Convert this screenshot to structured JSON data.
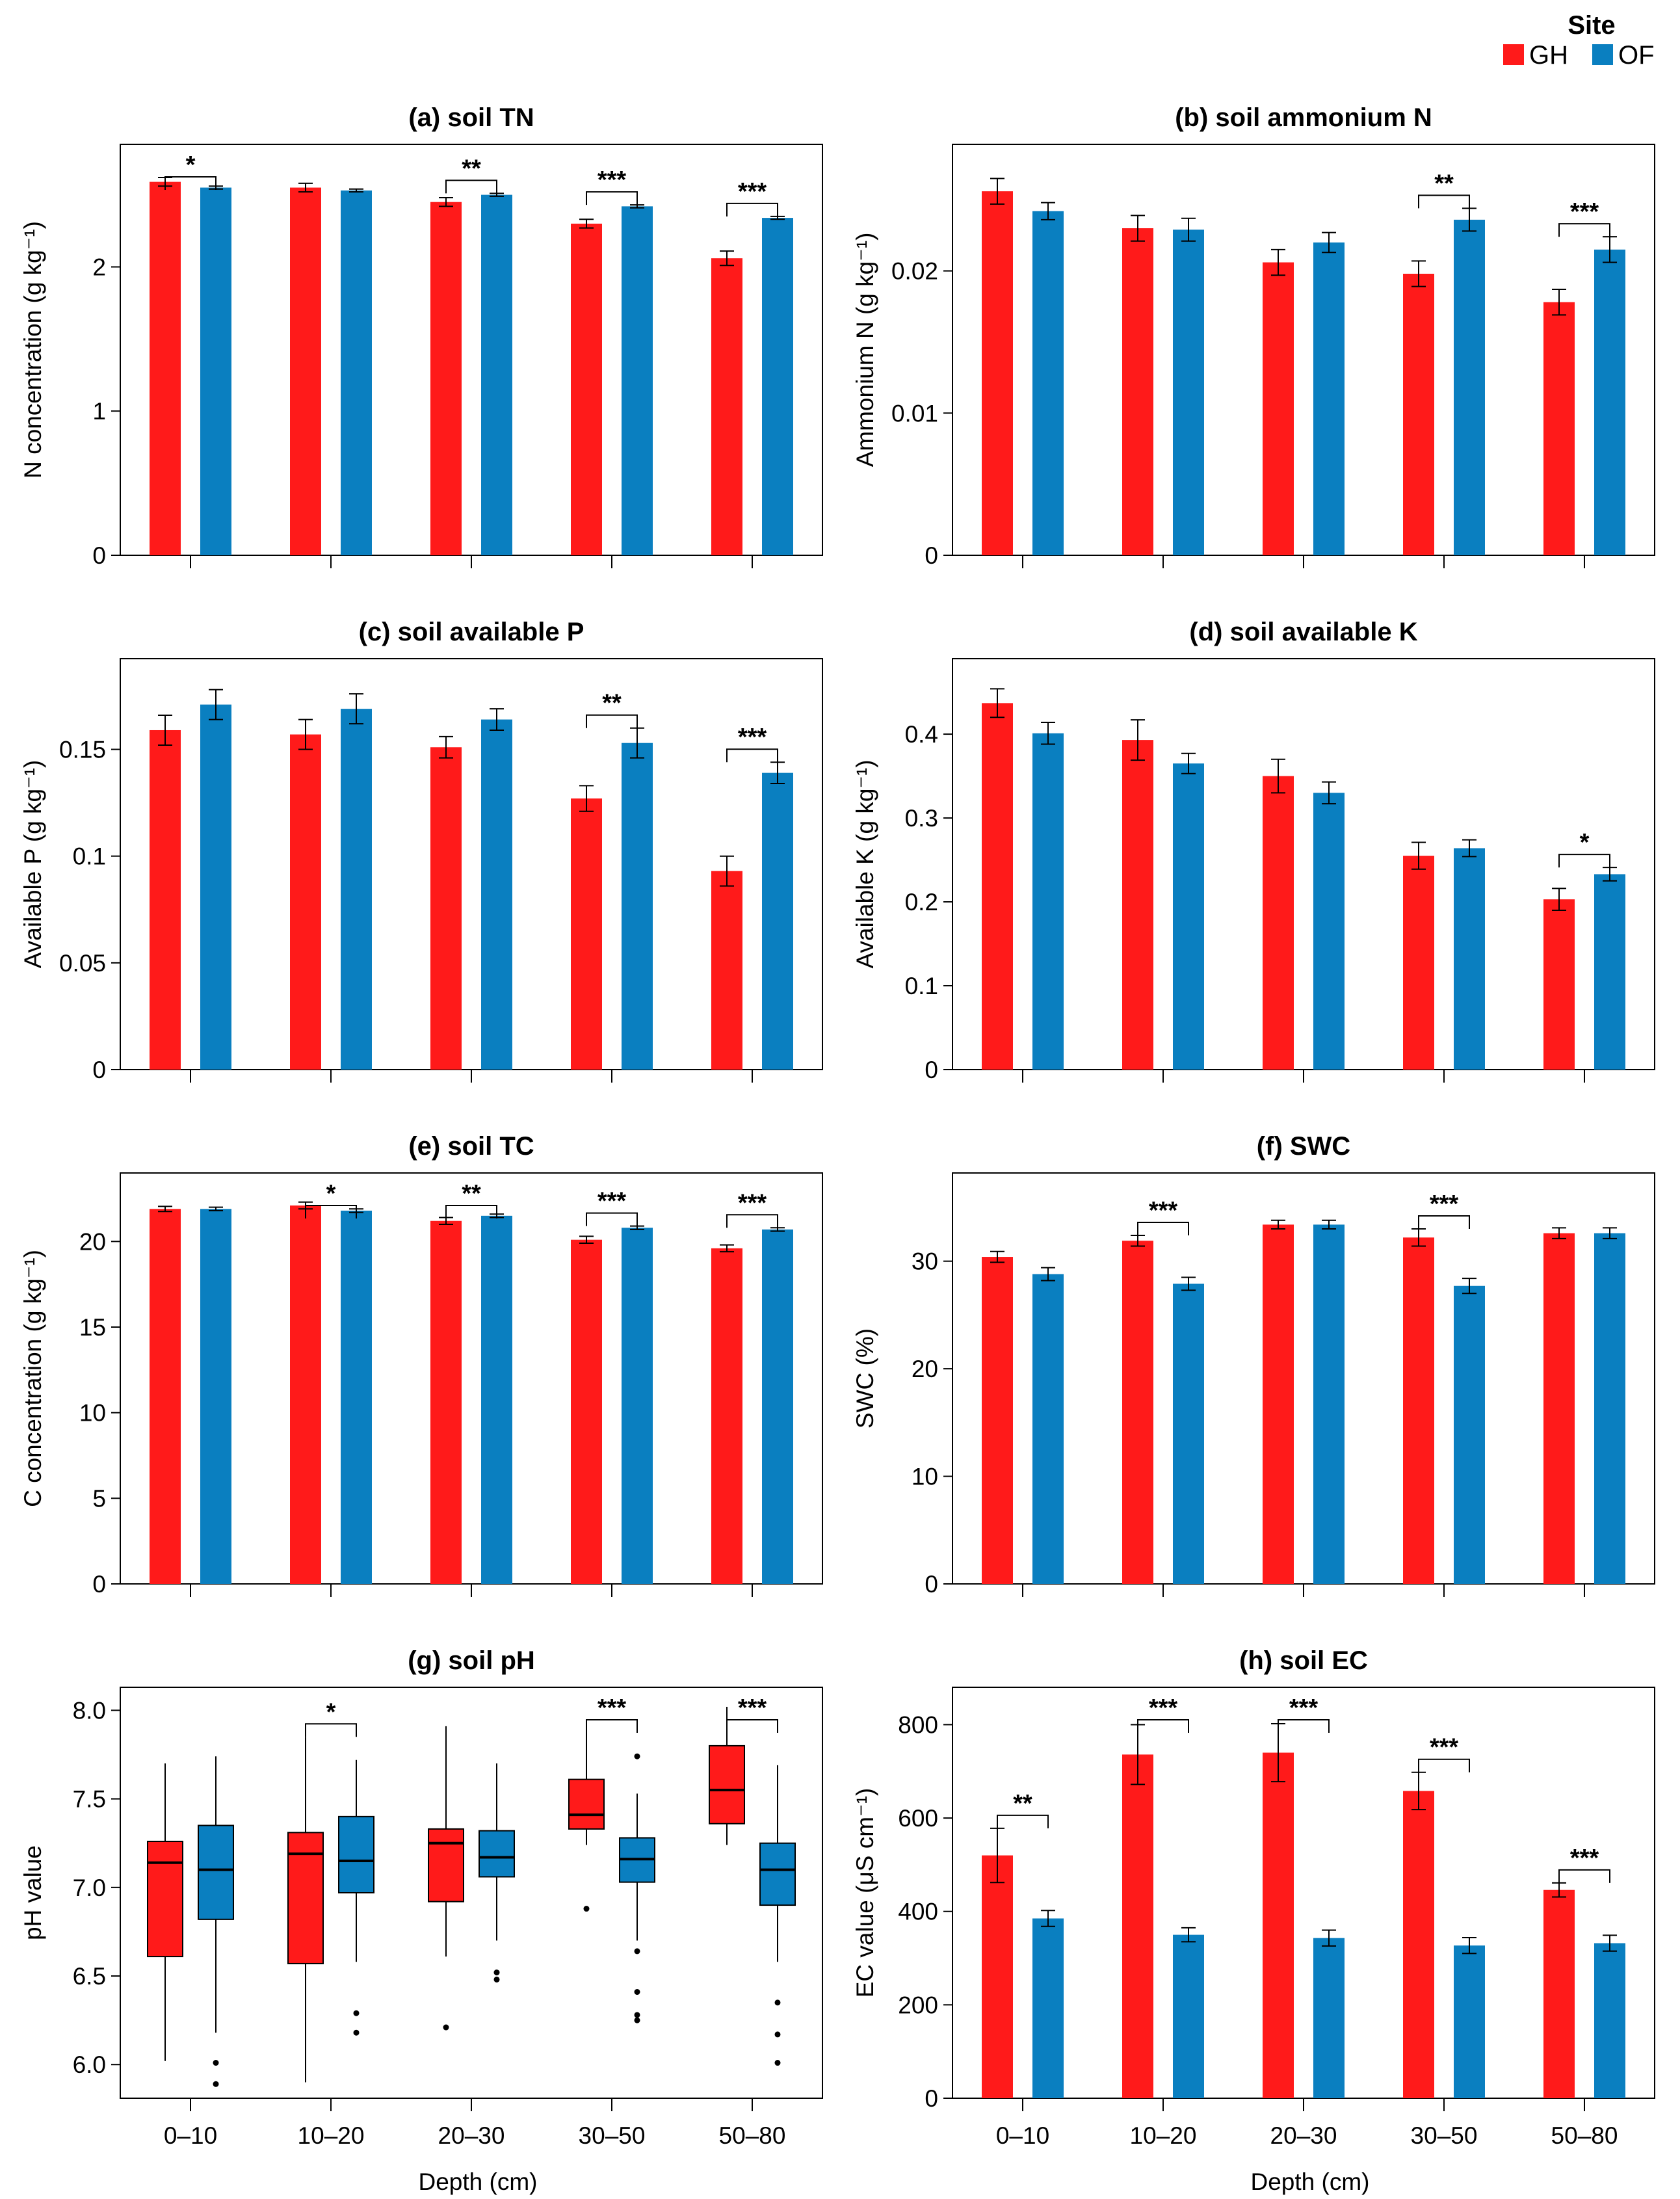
{
  "legend": {
    "title": "Site",
    "items": [
      {
        "label": "GH",
        "color": "#ff1a1a"
      },
      {
        "label": "OF",
        "color": "#0a7fc0"
      }
    ]
  },
  "xlabel": "Depth (cm)",
  "chart_data": [
    {
      "id": "a",
      "type": "bar",
      "title": "(a) soil TN",
      "ylabel": "N concentration (g kg⁻¹)",
      "ylim": [
        0,
        2.85
      ],
      "yticks": [
        0,
        1,
        2
      ],
      "ytick_labels": [
        "0",
        "1",
        "2"
      ],
      "categories": [
        "0–10",
        "10–20",
        "20–30",
        "30–50",
        "50–80"
      ],
      "series": [
        {
          "name": "GH",
          "values": [
            2.59,
            2.55,
            2.45,
            2.3,
            2.06
          ],
          "errors": [
            0.03,
            0.03,
            0.03,
            0.03,
            0.05
          ]
        },
        {
          "name": "OF",
          "values": [
            2.55,
            2.53,
            2.5,
            2.42,
            2.34
          ],
          "errors": [
            0.01,
            0.01,
            0.01,
            0.01,
            0.01
          ]
        }
      ],
      "significance": [
        "*",
        "",
        "**",
        "***",
        "***"
      ]
    },
    {
      "id": "b",
      "type": "bar",
      "title": "(b) soil ammonium N",
      "ylabel": "Ammonium N (g kg⁻¹)",
      "ylim": [
        0,
        0.0289
      ],
      "yticks": [
        0,
        0.01,
        0.02
      ],
      "ytick_labels": [
        "0",
        "0.01",
        "0.02"
      ],
      "categories": [
        "0–10",
        "10–20",
        "20–30",
        "30–50",
        "50–80"
      ],
      "series": [
        {
          "name": "GH",
          "values": [
            0.0256,
            0.023,
            0.0206,
            0.0198,
            0.0178
          ],
          "errors": [
            0.0009,
            0.0009,
            0.0009,
            0.0009,
            0.0009
          ]
        },
        {
          "name": "OF",
          "values": [
            0.0242,
            0.0229,
            0.022,
            0.0236,
            0.0215
          ],
          "errors": [
            0.0006,
            0.0008,
            0.0007,
            0.0008,
            0.0009
          ]
        }
      ],
      "significance": [
        "",
        "",
        "",
        "**",
        "***"
      ]
    },
    {
      "id": "c",
      "type": "bar",
      "title": "(c) soil available P",
      "ylabel": "Available P (g kg⁻¹)",
      "ylim": [
        0,
        0.1925
      ],
      "yticks": [
        0,
        0.05,
        0.1,
        0.15
      ],
      "ytick_labels": [
        "0",
        "0.05",
        "0.1",
        "0.15"
      ],
      "categories": [
        "0–10",
        "10–20",
        "20–30",
        "30–50",
        "50–80"
      ],
      "series": [
        {
          "name": "GH",
          "values": [
            0.159,
            0.157,
            0.151,
            0.127,
            0.093
          ],
          "errors": [
            0.007,
            0.007,
            0.005,
            0.006,
            0.007
          ]
        },
        {
          "name": "OF",
          "values": [
            0.171,
            0.169,
            0.164,
            0.153,
            0.139
          ],
          "errors": [
            0.007,
            0.007,
            0.005,
            0.007,
            0.005
          ]
        }
      ],
      "significance": [
        "",
        "",
        "",
        "**",
        "***"
      ]
    },
    {
      "id": "d",
      "type": "bar",
      "title": "(d) soil available K",
      "ylabel": "Available K (g kg⁻¹)",
      "ylim": [
        0,
        0.49
      ],
      "yticks": [
        0,
        0.1,
        0.2,
        0.3,
        0.4
      ],
      "ytick_labels": [
        "0",
        "0.1",
        "0.2",
        "0.3",
        "0.4"
      ],
      "categories": [
        "0–10",
        "10–20",
        "20–30",
        "30–50",
        "50–80"
      ],
      "series": [
        {
          "name": "GH",
          "values": [
            0.437,
            0.393,
            0.35,
            0.255,
            0.203
          ],
          "errors": [
            0.017,
            0.024,
            0.02,
            0.016,
            0.013
          ]
        },
        {
          "name": "OF",
          "values": [
            0.401,
            0.365,
            0.33,
            0.264,
            0.233
          ],
          "errors": [
            0.013,
            0.012,
            0.013,
            0.01,
            0.008
          ]
        }
      ],
      "significance": [
        "",
        "",
        "",
        "",
        "*"
      ]
    },
    {
      "id": "e",
      "type": "bar",
      "title": "(e) soil TC",
      "ylabel": "C concentration (g kg⁻¹)",
      "ylim": [
        0,
        24.0
      ],
      "yticks": [
        0,
        5,
        10,
        15,
        20
      ],
      "ytick_labels": [
        "0",
        "5",
        "10",
        "15",
        "20"
      ],
      "categories": [
        "0–10",
        "10–20",
        "20–30",
        "30–50",
        "50–80"
      ],
      "series": [
        {
          "name": "GH",
          "values": [
            21.9,
            22.1,
            21.2,
            20.1,
            19.6
          ],
          "errors": [
            0.15,
            0.2,
            0.2,
            0.2,
            0.2
          ]
        },
        {
          "name": "OF",
          "values": [
            21.9,
            21.8,
            21.5,
            20.8,
            20.7
          ],
          "errors": [
            0.1,
            0.1,
            0.1,
            0.1,
            0.1
          ]
        }
      ],
      "significance": [
        "",
        "*",
        "**",
        "***",
        "***"
      ]
    },
    {
      "id": "f",
      "type": "bar",
      "title": "(f) SWC",
      "ylabel": "SWC (%)",
      "ylim": [
        0,
        38.2
      ],
      "yticks": [
        0,
        10,
        20,
        30
      ],
      "ytick_labels": [
        "0",
        "10",
        "20",
        "30"
      ],
      "categories": [
        "0–10",
        "10–20",
        "20–30",
        "30–50",
        "50–80"
      ],
      "series": [
        {
          "name": "GH",
          "values": [
            30.4,
            31.9,
            33.4,
            32.2,
            32.6
          ],
          "errors": [
            0.5,
            0.5,
            0.4,
            0.8,
            0.5
          ]
        },
        {
          "name": "OF",
          "values": [
            28.8,
            27.9,
            33.4,
            27.7,
            32.6
          ],
          "errors": [
            0.6,
            0.6,
            0.4,
            0.7,
            0.5
          ]
        }
      ],
      "significance": [
        "",
        "***",
        "",
        "***",
        ""
      ]
    },
    {
      "id": "g",
      "type": "box",
      "title": "(g) soil pH",
      "ylabel": "pH value",
      "ylim": [
        5.81,
        8.13
      ],
      "yticks": [
        6.0,
        6.5,
        7.0,
        7.5,
        8.0
      ],
      "ytick_labels": [
        "6.0",
        "6.5",
        "7.0",
        "7.5",
        "8.0"
      ],
      "categories": [
        "0–10",
        "10–20",
        "20–30",
        "30–50",
        "50–80"
      ],
      "series": [
        {
          "name": "GH",
          "boxes": [
            {
              "whisker_low": 6.02,
              "q1": 6.61,
              "median": 7.14,
              "q3": 7.26,
              "whisker_high": 7.7,
              "outliers": []
            },
            {
              "whisker_low": 5.9,
              "q1": 6.57,
              "median": 7.19,
              "q3": 7.31,
              "whisker_high": 7.85,
              "outliers": []
            },
            {
              "whisker_low": 6.61,
              "q1": 6.92,
              "median": 7.25,
              "q3": 7.33,
              "whisker_high": 7.91,
              "outliers": [
                6.21
              ]
            },
            {
              "whisker_low": 7.24,
              "q1": 7.33,
              "median": 7.41,
              "q3": 7.61,
              "whisker_high": 7.95,
              "outliers": [
                6.88
              ]
            },
            {
              "whisker_low": 7.24,
              "q1": 7.36,
              "median": 7.55,
              "q3": 7.8,
              "whisker_high": 8.02,
              "outliers": []
            }
          ]
        },
        {
          "name": "OF",
          "boxes": [
            {
              "whisker_low": 6.18,
              "q1": 6.82,
              "median": 7.1,
              "q3": 7.35,
              "whisker_high": 7.74,
              "outliers": [
                6.01,
                5.89
              ]
            },
            {
              "whisker_low": 6.58,
              "q1": 6.97,
              "median": 7.15,
              "q3": 7.4,
              "whisker_high": 7.72,
              "outliers": [
                6.29,
                6.18
              ]
            },
            {
              "whisker_low": 6.7,
              "q1": 7.06,
              "median": 7.17,
              "q3": 7.32,
              "whisker_high": 7.7,
              "outliers": [
                6.52,
                6.48
              ]
            },
            {
              "whisker_low": 6.7,
              "q1": 7.03,
              "median": 7.16,
              "q3": 7.28,
              "whisker_high": 7.53,
              "outliers": [
                7.74,
                6.64,
                6.41,
                6.28,
                6.25
              ]
            },
            {
              "whisker_low": 6.58,
              "q1": 6.9,
              "median": 7.1,
              "q3": 7.25,
              "whisker_high": 7.69,
              "outliers": [
                6.35,
                6.17,
                6.01
              ]
            }
          ]
        }
      ],
      "significance": [
        "",
        "*",
        "",
        "***",
        "***"
      ]
    },
    {
      "id": "h",
      "type": "bar",
      "title": "(h) soil EC",
      "ylabel": "EC value (μS cm⁻¹)",
      "ylim": [
        0,
        880
      ],
      "yticks": [
        0,
        200,
        400,
        600,
        800
      ],
      "ytick_labels": [
        "0",
        "200",
        "400",
        "600",
        "800"
      ],
      "categories": [
        "0–10",
        "10–20",
        "20–30",
        "30–50",
        "50–80"
      ],
      "series": [
        {
          "name": "GH",
          "values": [
            520,
            736,
            740,
            658,
            446
          ],
          "errors": [
            58,
            64,
            62,
            40,
            15
          ]
        },
        {
          "name": "OF",
          "values": [
            385,
            350,
            343,
            327,
            332
          ],
          "errors": [
            17,
            15,
            17,
            17,
            17
          ]
        }
      ],
      "significance": [
        "**",
        "***",
        "***",
        "***",
        "***"
      ]
    }
  ]
}
